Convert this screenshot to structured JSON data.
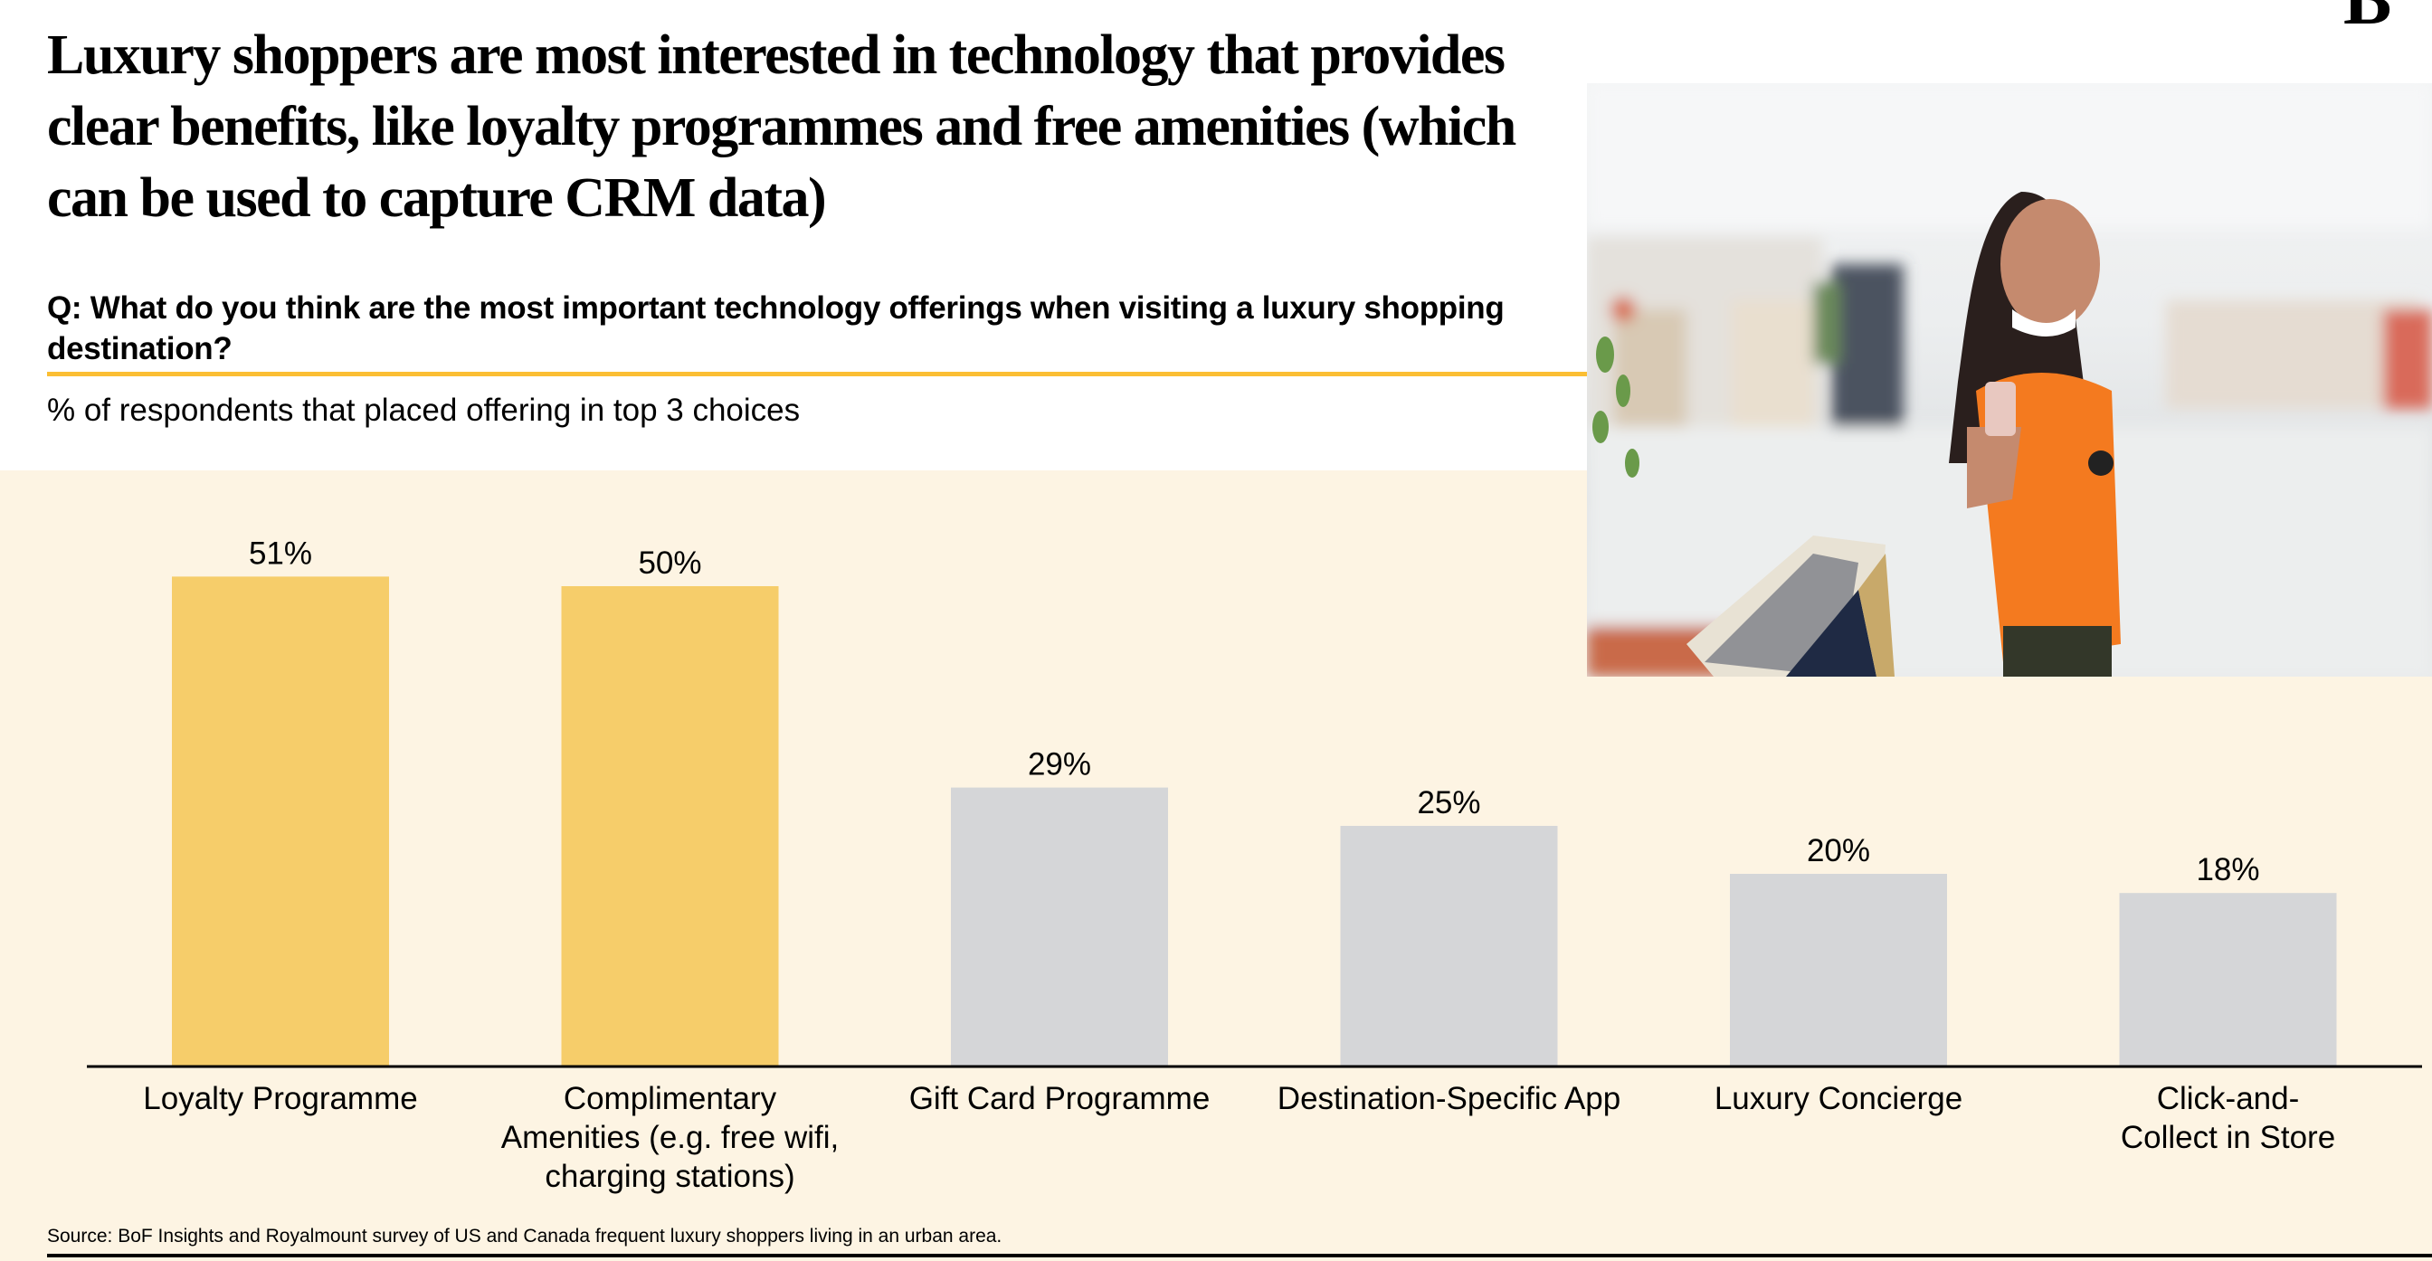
{
  "header": {
    "logo_text": "B",
    "title": "Luxury shoppers are most interested in technology that provides clear benefits, like loyalty programmes and free amenities (which can be used to capture CRM data)",
    "question": "Q: What do you think are the most important technology offerings when visiting a luxury shopping destination?",
    "subtitle": "% of respondents that placed offering in top 3 choices"
  },
  "photo": {
    "description": "Woman in orange top smiling at smartphone holding shopping bags in a mall"
  },
  "colors": {
    "background": "#FDF4E3",
    "highlight_bar": "#F6CD6A",
    "default_bar": "#D5D6D8",
    "rule": "#FBBE33"
  },
  "chart_data": {
    "type": "bar",
    "title": "Luxury shoppers are most interested in technology that provides clear benefits, like loyalty programmes and free amenities (which can be used to capture CRM data)",
    "subtitle": "% of respondents that placed offering in top 3 choices",
    "xlabel": "",
    "ylabel": "",
    "ylim": [
      0,
      51
    ],
    "grid": false,
    "categories": [
      [
        "Loyalty Programme"
      ],
      [
        "Complimentary",
        "Amenities (e.g. free wifi,",
        "charging stations)"
      ],
      [
        "Gift Card Programme"
      ],
      [
        "Destination-Specific App"
      ],
      [
        "Luxury Concierge"
      ],
      [
        "Click-and-",
        "Collect in Store"
      ]
    ],
    "values": [
      51,
      50,
      29,
      25,
      20,
      18
    ],
    "data_labels": [
      "51%",
      "50%",
      "29%",
      "25%",
      "20%",
      "18%"
    ],
    "highlighted": [
      true,
      true,
      false,
      false,
      false,
      false
    ]
  },
  "footer": {
    "source": "Source: BoF Insights and Royalmount survey of US and Canada frequent luxury shoppers living in an urban area."
  }
}
